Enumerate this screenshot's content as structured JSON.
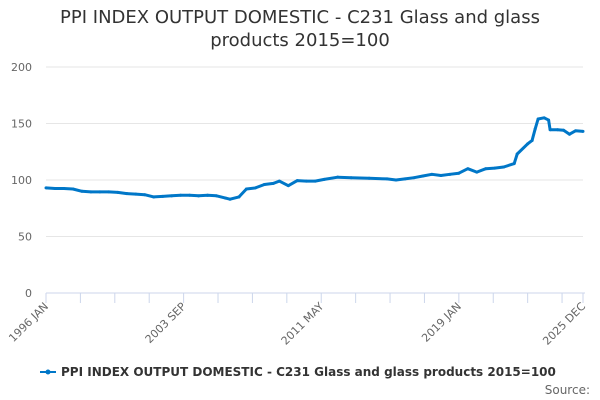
{
  "chart_data": {
    "type": "line",
    "title_lines": [
      "PPI INDEX OUTPUT DOMESTIC - C231 Glass and glass",
      "products 2015=100"
    ],
    "xlabel": "",
    "ylabel": "",
    "ylim": [
      0,
      200
    ],
    "yticks": [
      0,
      50,
      100,
      150,
      200
    ],
    "xlim": [
      "1996-01",
      "2025-12"
    ],
    "xticks": [
      {
        "date": "1996-01",
        "label": "1996 JAN"
      },
      {
        "date": "2003-09",
        "label": "2003 SEP"
      },
      {
        "date": "2011-05",
        "label": "2011 MAY"
      },
      {
        "date": "2019-01",
        "label": "2019 JAN"
      },
      {
        "date": "2025-12",
        "label": "2025 DEC"
      }
    ],
    "grid": true,
    "legend_position": "bottom",
    "series": [
      {
        "name": "PPI INDEX OUTPUT DOMESTIC - C231 Glass and glass products 2015=100",
        "color": "#0077c8",
        "points": [
          [
            "1996-01",
            93
          ],
          [
            "1996-07",
            92.5
          ],
          [
            "1997-01",
            92.5
          ],
          [
            "1997-07",
            92
          ],
          [
            "1998-01",
            90
          ],
          [
            "1998-07",
            89.5
          ],
          [
            "1999-01",
            89.5
          ],
          [
            "1999-07",
            89.5
          ],
          [
            "2000-01",
            89
          ],
          [
            "2000-07",
            88
          ],
          [
            "2001-01",
            87.5
          ],
          [
            "2001-07",
            87
          ],
          [
            "2002-01",
            85
          ],
          [
            "2002-07",
            85.5
          ],
          [
            "2003-01",
            86
          ],
          [
            "2003-07",
            86.5
          ],
          [
            "2004-01",
            86.5
          ],
          [
            "2004-07",
            86
          ],
          [
            "2005-01",
            86.5
          ],
          [
            "2005-07",
            86
          ],
          [
            "2006-01",
            84
          ],
          [
            "2006-04",
            83
          ],
          [
            "2006-10",
            85
          ],
          [
            "2007-03",
            92
          ],
          [
            "2007-09",
            93
          ],
          [
            "2008-03",
            96
          ],
          [
            "2008-09",
            97
          ],
          [
            "2009-01",
            99
          ],
          [
            "2009-07",
            95
          ],
          [
            "2010-01",
            99.5
          ],
          [
            "2010-07",
            99
          ],
          [
            "2011-01",
            99
          ],
          [
            "2011-07",
            100.5
          ],
          [
            "2012-04",
            102.5
          ],
          [
            "2013-01",
            102
          ],
          [
            "2014-01",
            101.5
          ],
          [
            "2015-01",
            101
          ],
          [
            "2015-07",
            100
          ],
          [
            "2016-01",
            101
          ],
          [
            "2016-07",
            102
          ],
          [
            "2017-01",
            103.5
          ],
          [
            "2017-07",
            105
          ],
          [
            "2018-01",
            104
          ],
          [
            "2018-07",
            105
          ],
          [
            "2019-01",
            106
          ],
          [
            "2019-07",
            110
          ],
          [
            "2020-01",
            107
          ],
          [
            "2020-07",
            110
          ],
          [
            "2021-01",
            110.5
          ],
          [
            "2021-07",
            111.5
          ],
          [
            "2022-02",
            114.5
          ],
          [
            "2022-04",
            123
          ],
          [
            "2022-11",
            132
          ],
          [
            "2023-02",
            135
          ],
          [
            "2023-04",
            145
          ],
          [
            "2023-06",
            154
          ],
          [
            "2023-10",
            155
          ],
          [
            "2024-01",
            153
          ],
          [
            "2024-02",
            144.5
          ],
          [
            "2024-07",
            144.5
          ],
          [
            "2024-11",
            144
          ],
          [
            "2025-03",
            140.5
          ],
          [
            "2025-07",
            143.5
          ],
          [
            "2025-12",
            143
          ]
        ]
      }
    ],
    "source_label": "Source:"
  }
}
